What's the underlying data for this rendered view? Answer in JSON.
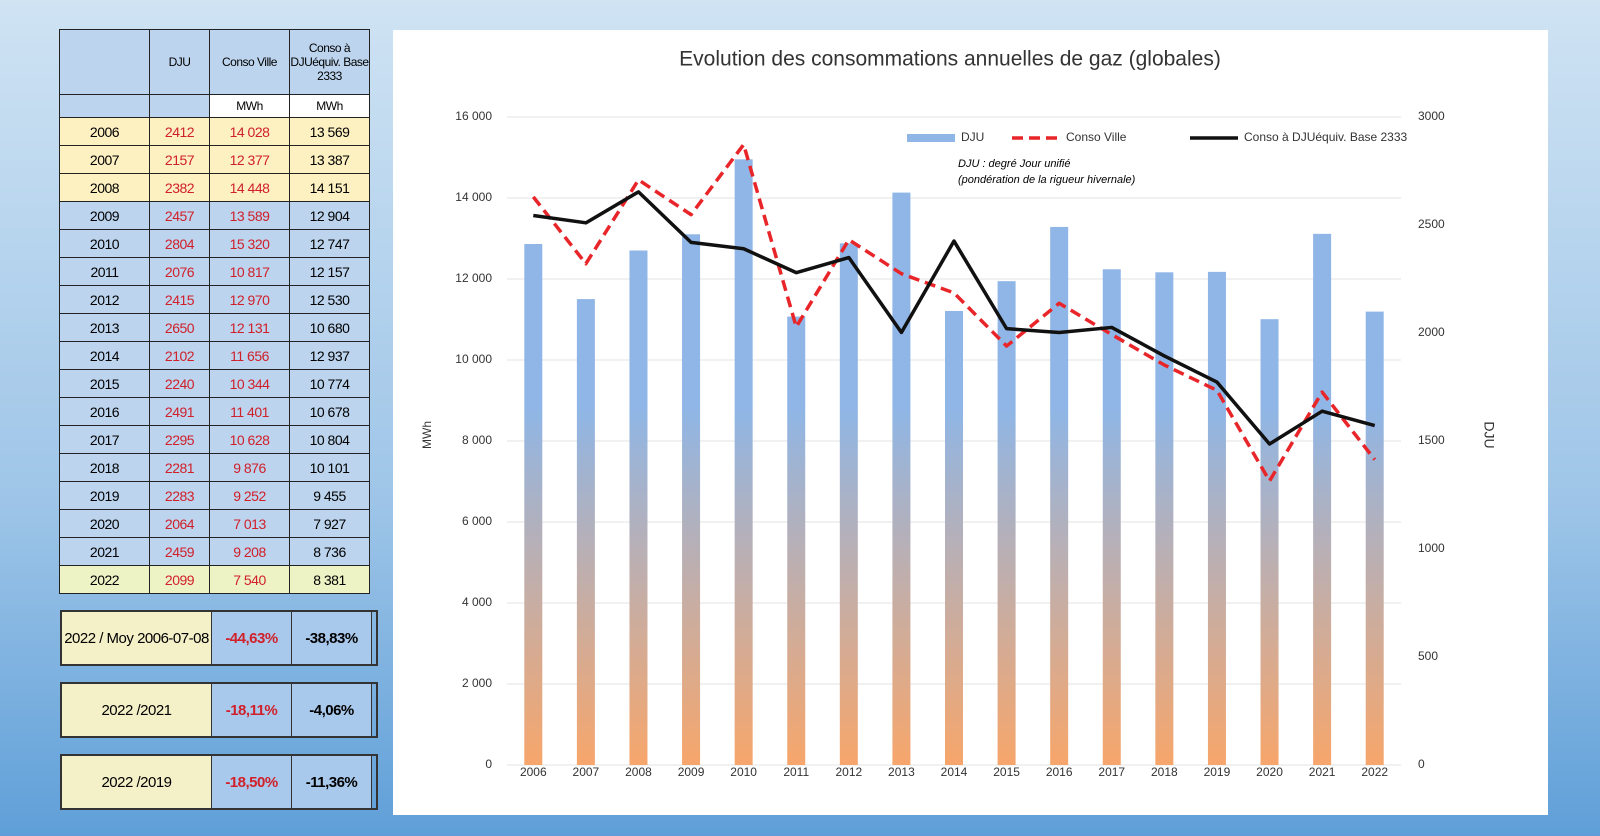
{
  "table": {
    "columns": [
      "DJU",
      "Conso Ville",
      "Conso à DJUéquiv. Base 2333"
    ],
    "units": [
      "MWh",
      "MWh"
    ],
    "rows": [
      [
        "2006",
        "2412",
        "14 028",
        "13 569"
      ],
      [
        "2007",
        "2157",
        "12 377",
        "13 387"
      ],
      [
        "2008",
        "2382",
        "14 448",
        "14 151"
      ],
      [
        "2009",
        "2457",
        "13 589",
        "12 904"
      ],
      [
        "2010",
        "2804",
        "15 320",
        "12 747"
      ],
      [
        "2011",
        "2076",
        "10 817",
        "12 157"
      ],
      [
        "2012",
        "2415",
        "12 970",
        "12 530"
      ],
      [
        "2013",
        "2650",
        "12 131",
        "10 680"
      ],
      [
        "2014",
        "2102",
        "11 656",
        "12 937"
      ],
      [
        "2015",
        "2240",
        "10 344",
        "10 774"
      ],
      [
        "2016",
        "2491",
        "11 401",
        "10 678"
      ],
      [
        "2017",
        "2295",
        "10 628",
        "10 804"
      ],
      [
        "2018",
        "2281",
        "9 876",
        "10 101"
      ],
      [
        "2019",
        "2283",
        "9 252",
        "9 455"
      ],
      [
        "2020",
        "2064",
        "7 013",
        "7 927"
      ],
      [
        "2021",
        "2459",
        "9 208",
        "8 736"
      ],
      [
        "2022",
        "2099",
        "7 540",
        "8 381"
      ]
    ],
    "summary": [
      [
        "2022 / Moy 2006-07-08",
        "-44,63%",
        "-38,83%"
      ],
      [
        "2022 /2021",
        "-18,11%",
        "-4,06%"
      ],
      [
        "2022 /2019",
        "-18,50%",
        "-11,36%"
      ]
    ]
  },
  "chart_data": {
    "type": "bar-line",
    "title": "Evolution des consommations annuelles de gaz (globales)",
    "note": [
      "DJU : degré Jour unifié",
      "(pondération de la rigueur hivernale)"
    ],
    "y_label": "MWh",
    "y2_label": "DJU",
    "categories": [
      "2006",
      "2007",
      "2008",
      "2009",
      "2010",
      "2011",
      "2012",
      "2013",
      "2014",
      "2015",
      "2016",
      "2017",
      "2018",
      "2019",
      "2020",
      "2021",
      "2022"
    ],
    "series": [
      {
        "name": "DJU",
        "type": "bar",
        "axis": "y2",
        "color": "#8fb6e6",
        "values": [
          2412,
          2157,
          2382,
          2457,
          2804,
          2076,
          2415,
          2650,
          2102,
          2240,
          2491,
          2295,
          2281,
          2283,
          2064,
          2459,
          2099
        ]
      },
      {
        "name": "Conso Ville",
        "type": "line",
        "dashed": true,
        "color": "#e8262a",
        "values": [
          14028,
          12377,
          14448,
          13589,
          15320,
          10817,
          12970,
          12131,
          11656,
          10344,
          11401,
          10628,
          9876,
          9252,
          7013,
          9208,
          7540
        ]
      },
      {
        "name": "Conso à DJUéquiv. Base 2333",
        "type": "line",
        "color": "#111111",
        "values": [
          13569,
          13387,
          14151,
          12904,
          12747,
          12157,
          12530,
          10680,
          12937,
          10774,
          10678,
          10804,
          10101,
          9455,
          7927,
          8736,
          8381
        ]
      }
    ],
    "ylim": [
      0,
      16000
    ],
    "yticks": [
      {
        "value": 0,
        "label": "0"
      },
      {
        "value": 2000,
        "label": "2 000"
      },
      {
        "value": 4000,
        "label": "4 000"
      },
      {
        "value": 6000,
        "label": "6 000"
      },
      {
        "value": 8000,
        "label": "8 000"
      },
      {
        "value": 10000,
        "label": "10 000"
      },
      {
        "value": 12000,
        "label": "12 000"
      },
      {
        "value": 14000,
        "label": "14 000"
      },
      {
        "value": 16000,
        "label": "16 000"
      }
    ],
    "y2lim": [
      0,
      3000
    ],
    "y2ticks": [
      0,
      500,
      1000,
      1500,
      2000,
      2500,
      3000
    ],
    "grid": true
  }
}
